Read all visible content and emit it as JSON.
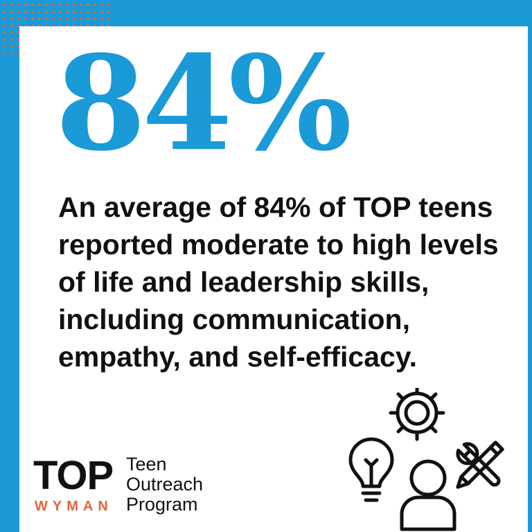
{
  "stat": {
    "value": "84%",
    "color": "#1a9ad6"
  },
  "statement": "An average of 84% of TOP teens reported moderate to high levels of life and leadership skills, including communication, empathy, and self-efficacy.",
  "logo": {
    "wordmark": "TOP",
    "org": "WYMAN",
    "org_color": "#e8643a",
    "line1": "Teen",
    "line2": "Outreach",
    "line3": "Program"
  },
  "colors": {
    "background": "#1a9ad6",
    "card": "#ffffff",
    "accent": "#e8643a",
    "text": "#111111"
  },
  "icons": [
    "gear-icon",
    "lightbulb-icon",
    "person-icon",
    "wrench-icon",
    "pencil-icon"
  ]
}
